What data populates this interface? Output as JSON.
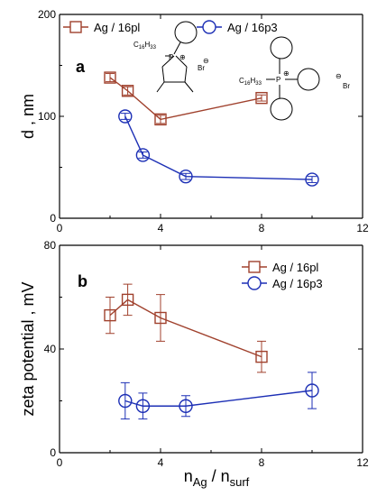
{
  "chart_data": [
    {
      "panel": "a",
      "type": "line",
      "ylabel": "d , nm",
      "xlim": [
        0,
        12
      ],
      "ylim": [
        0,
        200
      ],
      "x_ticks": [
        "0",
        "4",
        "8",
        "12"
      ],
      "y_ticks": [
        "0",
        "100",
        "200"
      ],
      "legend_position": "top",
      "series": [
        {
          "name": "Ag / 16pl",
          "color": "#a0412d",
          "marker": "square",
          "x": [
            2,
            2.7,
            4,
            8
          ],
          "y": [
            138,
            125,
            97,
            118
          ],
          "err": [
            4,
            4,
            4,
            3
          ]
        },
        {
          "name": "Ag / 16p3",
          "color": "#1c2fb5",
          "marker": "circle",
          "x": [
            2.6,
            3.3,
            5,
            10
          ],
          "y": [
            100,
            62,
            41,
            38
          ],
          "err": [
            3,
            3,
            3,
            3
          ]
        }
      ],
      "structures": {
        "left_substituent": "C",
        "left_subscript": "16",
        "left_h": "H",
        "left_h_subscript": "33",
        "left_p": "P",
        "left_charge": "⊕",
        "left_anion": "Br",
        "left_anion_charge": "⊖",
        "right_substituent": "C",
        "right_subscript": "16",
        "right_h": "H",
        "right_h_subscript": "33",
        "right_p": "P",
        "right_charge": "⊕",
        "right_anion": "Br",
        "right_anion_charge": "⊖"
      }
    },
    {
      "panel": "b",
      "type": "line",
      "ylabel": "zeta potential , mV",
      "xlabel_main": "n",
      "xlabel_sub1": "Ag",
      "xlabel_sep": " / n",
      "xlabel_sub2": "surf",
      "xlim": [
        0,
        12
      ],
      "ylim": [
        0,
        80
      ],
      "x_ticks": [
        "0",
        "4",
        "8",
        "12"
      ],
      "y_ticks": [
        "0",
        "40",
        "80"
      ],
      "legend_position": "top-right",
      "series": [
        {
          "name": "Ag / 16pl",
          "color": "#a0412d",
          "marker": "square",
          "x": [
            2,
            2.7,
            4,
            8
          ],
          "y": [
            53,
            59,
            52,
            37
          ],
          "err": [
            7,
            6,
            9,
            6
          ]
        },
        {
          "name": "Ag / 16p3",
          "color": "#1c2fb5",
          "marker": "circle",
          "x": [
            2.6,
            3.3,
            5,
            10
          ],
          "y": [
            20,
            18,
            18,
            24
          ],
          "err": [
            7,
            5,
            4,
            7
          ]
        }
      ]
    }
  ]
}
